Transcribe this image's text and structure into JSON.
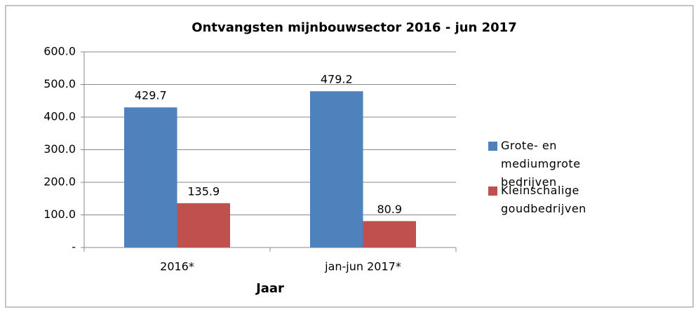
{
  "chart_data": {
    "type": "bar",
    "title": "Ontvangsten mijnbouwsector  2016 - jun 2017",
    "x_label": "Jaar",
    "categories": [
      "2016*",
      "jan-jun 2017*"
    ],
    "series": [
      {
        "name": "Grote- en mediumgrote bedrijven",
        "color": "#4f81bd",
        "values": [
          429.7,
          479.2
        ]
      },
      {
        "name": "Kleinschalige goudbedrijven",
        "color": "#c0504d",
        "values": [
          135.9,
          80.9
        ]
      }
    ],
    "ylim": [
      0,
      600
    ],
    "yticks": [
      {
        "value": 0,
        "label": "-"
      },
      {
        "value": 100,
        "label": "100.0"
      },
      {
        "value": 200,
        "label": "200.0"
      },
      {
        "value": 300,
        "label": "300.0"
      },
      {
        "value": 400,
        "label": "400.0"
      },
      {
        "value": 500,
        "label": "500.0"
      },
      {
        "value": 600,
        "label": "600.0"
      }
    ],
    "grid": true,
    "legend": "right"
  }
}
